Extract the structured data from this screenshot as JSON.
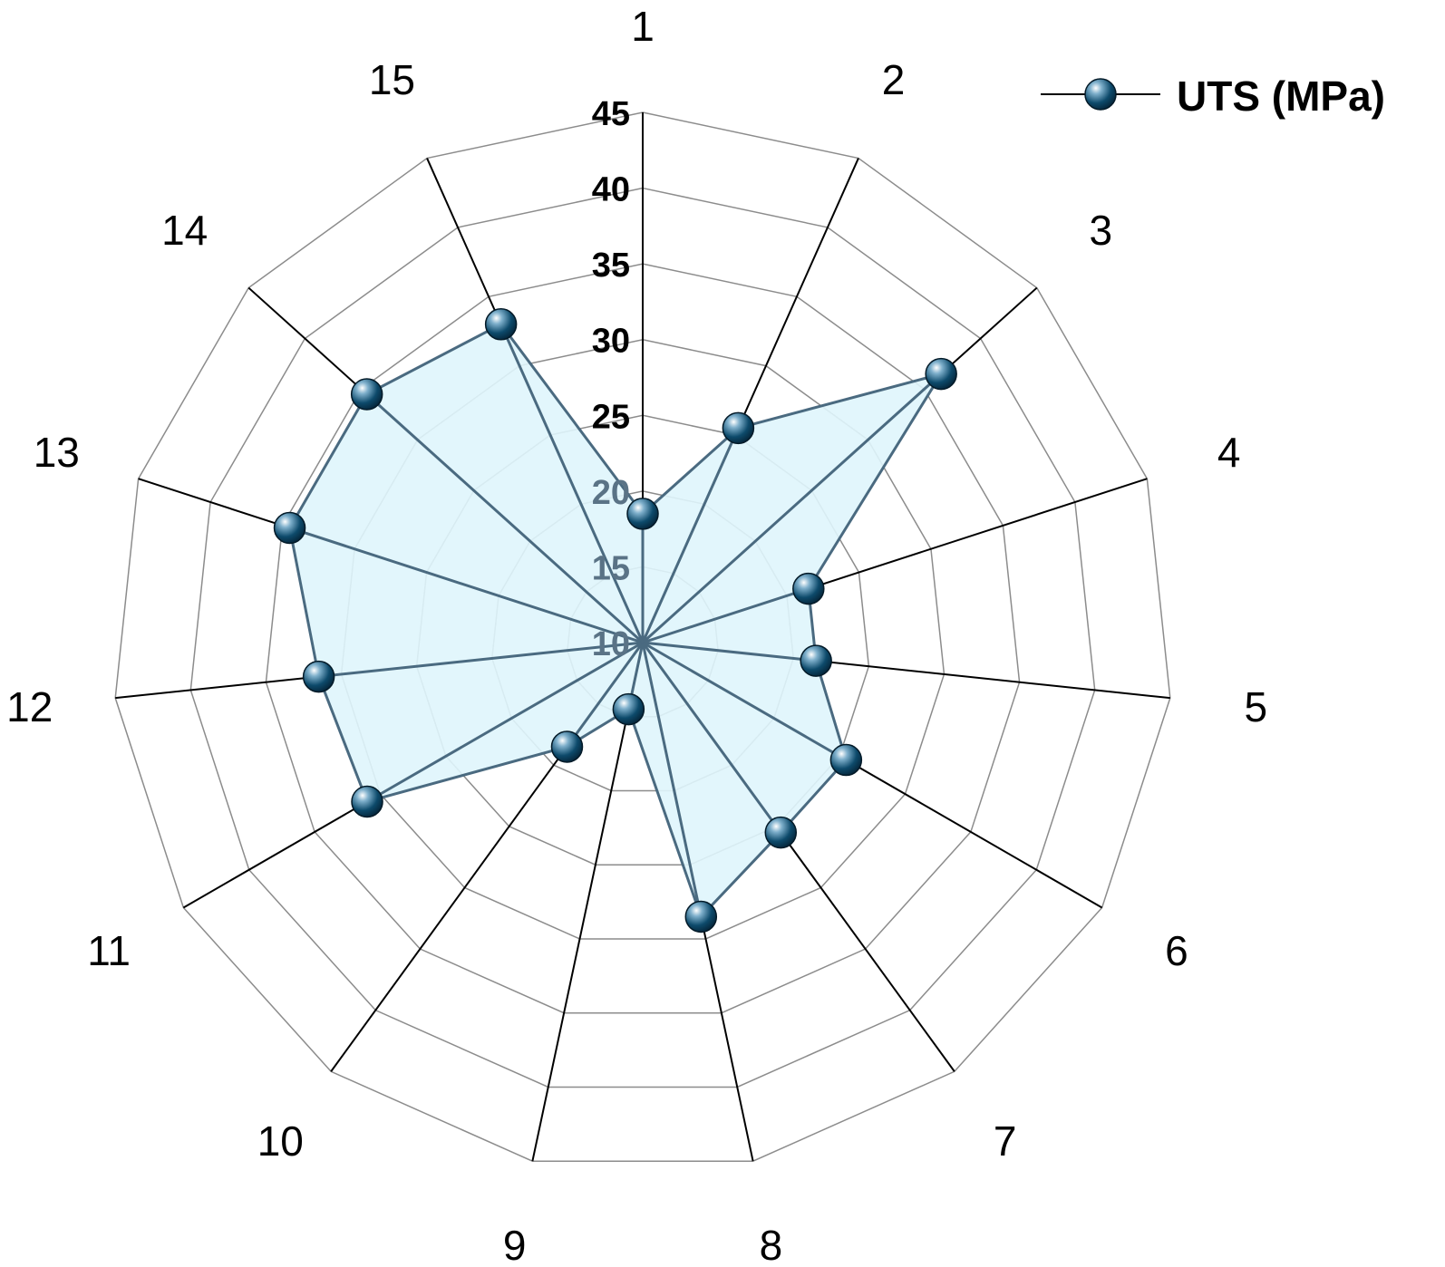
{
  "chart_data": {
    "type": "radar",
    "categories": [
      "1",
      "2",
      "3",
      "4",
      "5",
      "6",
      "7",
      "8",
      "9",
      "10",
      "11",
      "12",
      "13",
      "14",
      "15"
    ],
    "series": [
      {
        "name": "UTS (MPa)",
        "values": [
          18.5,
          25.5,
          36.5,
          21.5,
          21.5,
          25.5,
          25.5,
          28.5,
          14.5,
          18.5,
          31,
          31.5,
          34.5,
          34.5,
          33
        ]
      }
    ],
    "radial_ticks": [
      "10",
      "15",
      "20",
      "25",
      "30",
      "35",
      "40",
      "45"
    ],
    "rlim": [
      10,
      45
    ],
    "legend": {
      "label": "UTS (MPa)",
      "position": "top-right"
    },
    "grid": true,
    "colors": {
      "fill": "#dff5fc",
      "line": "#4a6a80",
      "marker": "#0d4a6b",
      "spoke": "#000000",
      "grid": "#8c8c8c"
    }
  }
}
